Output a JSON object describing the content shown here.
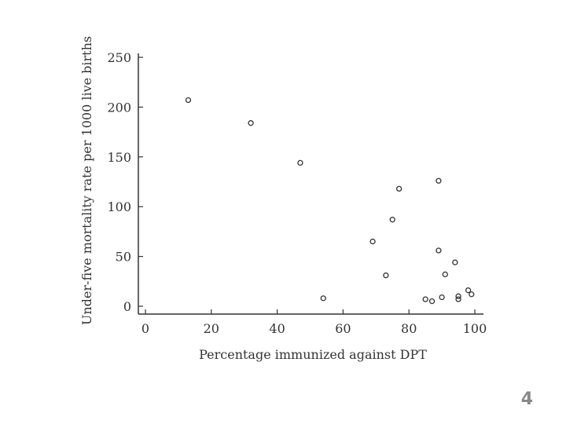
{
  "chart_data": {
    "type": "scatter",
    "xlabel": "Percentage immunized against DPT",
    "ylabel": "Under-five mortality rate per 1000 live births",
    "xlim": [
      0,
      100
    ],
    "ylim": [
      0,
      250
    ],
    "xticks": [
      "0",
      "20",
      "40",
      "60",
      "80",
      "100"
    ],
    "yticks": [
      "0",
      "50",
      "100",
      "150",
      "200",
      "250"
    ],
    "grid": false,
    "points": [
      {
        "x": 13,
        "y": 207
      },
      {
        "x": 32,
        "y": 184
      },
      {
        "x": 47,
        "y": 144
      },
      {
        "x": 54,
        "y": 8
      },
      {
        "x": 69,
        "y": 65
      },
      {
        "x": 73,
        "y": 31
      },
      {
        "x": 75,
        "y": 87
      },
      {
        "x": 77,
        "y": 118
      },
      {
        "x": 85,
        "y": 7
      },
      {
        "x": 87,
        "y": 5
      },
      {
        "x": 89,
        "y": 126
      },
      {
        "x": 89,
        "y": 56
      },
      {
        "x": 90,
        "y": 9
      },
      {
        "x": 91,
        "y": 32
      },
      {
        "x": 94,
        "y": 44
      },
      {
        "x": 95,
        "y": 7
      },
      {
        "x": 95,
        "y": 10
      },
      {
        "x": 98,
        "y": 16
      },
      {
        "x": 99,
        "y": 12
      }
    ],
    "marker_color": "#333333"
  },
  "page": {
    "number": "4"
  }
}
